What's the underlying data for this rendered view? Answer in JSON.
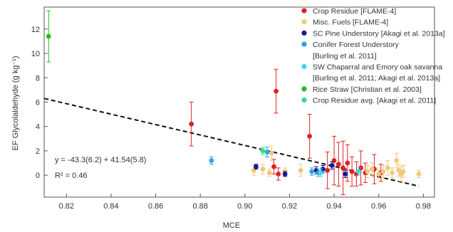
{
  "chart_data": {
    "type": "scatter",
    "xlabel": "MCE",
    "ylabel": "EF Glycolaldehyde (g kg⁻¹)",
    "xlim": [
      0.81,
      0.985
    ],
    "ylim": [
      -1.8,
      13.8
    ],
    "xticks": [
      0.82,
      0.84,
      0.86,
      0.88,
      0.9,
      0.92,
      0.94,
      0.96,
      0.98
    ],
    "xtick_labels": [
      "0.82",
      "0.84",
      "0.86",
      "0.88",
      "0.90",
      "0.92",
      "0.94",
      "0.96",
      "0.98"
    ],
    "yticks": [
      0,
      2,
      4,
      6,
      8,
      10,
      12
    ],
    "ytick_labels": [
      "0",
      "2",
      "4",
      "6",
      "8",
      "10",
      "12"
    ],
    "grid": false,
    "legend_position": "top-right",
    "series": [
      {
        "name": "Crop Residue [FLAME-4]",
        "color": "#dd2222",
        "points": [
          {
            "x": 0.876,
            "y": 4.2,
            "err": 1.8
          },
          {
            "x": 0.914,
            "y": 6.9,
            "err": 1.8
          },
          {
            "x": 0.929,
            "y": 3.2,
            "err": 1.8
          },
          {
            "x": 0.913,
            "y": 0.7,
            "err": 0.6
          },
          {
            "x": 0.915,
            "y": 0.1,
            "err": 0.5
          },
          {
            "x": 0.937,
            "y": 0.4,
            "err": 1.5
          },
          {
            "x": 0.94,
            "y": 1.2,
            "err": 2.0
          },
          {
            "x": 0.942,
            "y": 0.9,
            "err": 1.8
          },
          {
            "x": 0.944,
            "y": 0.6,
            "err": 2.2
          },
          {
            "x": 0.946,
            "y": 1.0,
            "err": 1.5
          },
          {
            "x": 0.948,
            "y": 0.3,
            "err": 1.2
          },
          {
            "x": 0.95,
            "y": 0.1,
            "err": 1.0
          },
          {
            "x": 0.952,
            "y": 0.6,
            "err": 1.4
          },
          {
            "x": 0.954,
            "y": 0.2,
            "err": 0.8
          },
          {
            "x": 0.958,
            "y": 0.5,
            "err": 1.2
          },
          {
            "x": 0.961,
            "y": 0.2,
            "err": 0.7
          }
        ]
      },
      {
        "name": "Misc. Fuels [FLAME-4]",
        "color": "#f5c77a",
        "points": [
          {
            "x": 0.912,
            "y": 1.8,
            "err": 0.6
          },
          {
            "x": 0.904,
            "y": 0.4,
            "err": 0.4
          },
          {
            "x": 0.908,
            "y": 0.5,
            "err": 0.4
          },
          {
            "x": 0.911,
            "y": 0.2,
            "err": 0.3
          },
          {
            "x": 0.918,
            "y": 0.3,
            "err": 0.3
          },
          {
            "x": 0.925,
            "y": 0.4,
            "err": 0.5
          },
          {
            "x": 0.955,
            "y": 0.3,
            "err": 0.5
          },
          {
            "x": 0.957,
            "y": 0.5,
            "err": 0.5
          },
          {
            "x": 0.96,
            "y": 0.1,
            "err": 0.4
          },
          {
            "x": 0.962,
            "y": 0.3,
            "err": 0.5
          },
          {
            "x": 0.964,
            "y": 0.6,
            "err": 0.6
          },
          {
            "x": 0.966,
            "y": 0.2,
            "err": 0.4
          },
          {
            "x": 0.968,
            "y": 1.2,
            "err": 0.6
          },
          {
            "x": 0.969,
            "y": 0.4,
            "err": 0.5
          },
          {
            "x": 0.97,
            "y": 0.1,
            "err": 0.6
          },
          {
            "x": 0.971,
            "y": 0.3,
            "err": 0.5
          },
          {
            "x": 0.978,
            "y": 0.1,
            "err": 0.3
          }
        ]
      },
      {
        "name": "SC Pine Understory [Akagi et al. 2013a]",
        "color": "#1a1a99",
        "points": [
          {
            "x": 0.905,
            "y": 0.7,
            "err": 0.2
          },
          {
            "x": 0.918,
            "y": 0.1,
            "err": 0.2
          },
          {
            "x": 0.932,
            "y": 0.4,
            "err": 0.3
          },
          {
            "x": 0.935,
            "y": 0.5,
            "err": 0.3
          },
          {
            "x": 0.939,
            "y": 0.8,
            "err": 0.3
          },
          {
            "x": 0.945,
            "y": 0.1,
            "err": 0.3
          }
        ]
      },
      {
        "name": "Conifer Forest Understory [Burling et al. 2011]",
        "color": "#2aa5e0",
        "points": [
          {
            "x": 0.885,
            "y": 1.2,
            "err": 0.3
          },
          {
            "x": 0.91,
            "y": 1.9,
            "err": 0.4
          },
          {
            "x": 0.93,
            "y": 0.3,
            "err": 0.3
          },
          {
            "x": 0.933,
            "y": 0.2,
            "err": 0.3
          }
        ]
      },
      {
        "name": "SW Chaparral and Emory oak savanna [Burling et al. 2011; Akagi et al. 2013a]",
        "color": "#3fd8e8",
        "points": [
          {
            "x": 0.934,
            "y": 0.2,
            "err": 0.3
          },
          {
            "x": 0.951,
            "y": 0.3,
            "err": 0.3
          }
        ]
      },
      {
        "name": "Rice Straw [Christian et al. 2003]",
        "color": "#22bb22",
        "points": [
          {
            "x": 0.812,
            "y": 11.4,
            "err": 2.1
          }
        ]
      },
      {
        "name": "Crop Residue avg. [Akagi et al. 2011]",
        "color": "#33dd88",
        "points": [
          {
            "x": 0.908,
            "y": 2.0,
            "err": 0.3
          }
        ]
      }
    ],
    "fit": {
      "equation": "y = -43.3(6.2) + 41.54(5.8)",
      "r_squared": "R² = 0.46",
      "x_start": 0.81,
      "x_end": 0.978,
      "y_start": 6.3,
      "y_end": -0.9,
      "style": "dashed",
      "color": "#111111"
    }
  }
}
